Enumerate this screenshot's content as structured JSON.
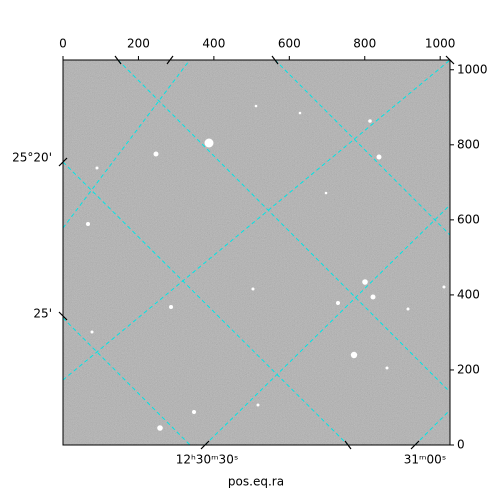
{
  "chart_data": {
    "type": "image",
    "x_label": "pos.eq.ra",
    "xlim": [
      0,
      1026
    ],
    "ylim": [
      0,
      1026
    ],
    "xticks": [
      0,
      200,
      400,
      600,
      800,
      1000
    ],
    "yticks": [
      0,
      200,
      400,
      600,
      800,
      1000
    ],
    "ra_ticks": [
      "12ʰ30ᵐ30ˢ",
      "31ᵐ00ˢ"
    ],
    "dec_ticks": [
      "25°20'",
      "25'"
    ],
    "grid": true,
    "grid_color": "#00e5e5"
  }
}
